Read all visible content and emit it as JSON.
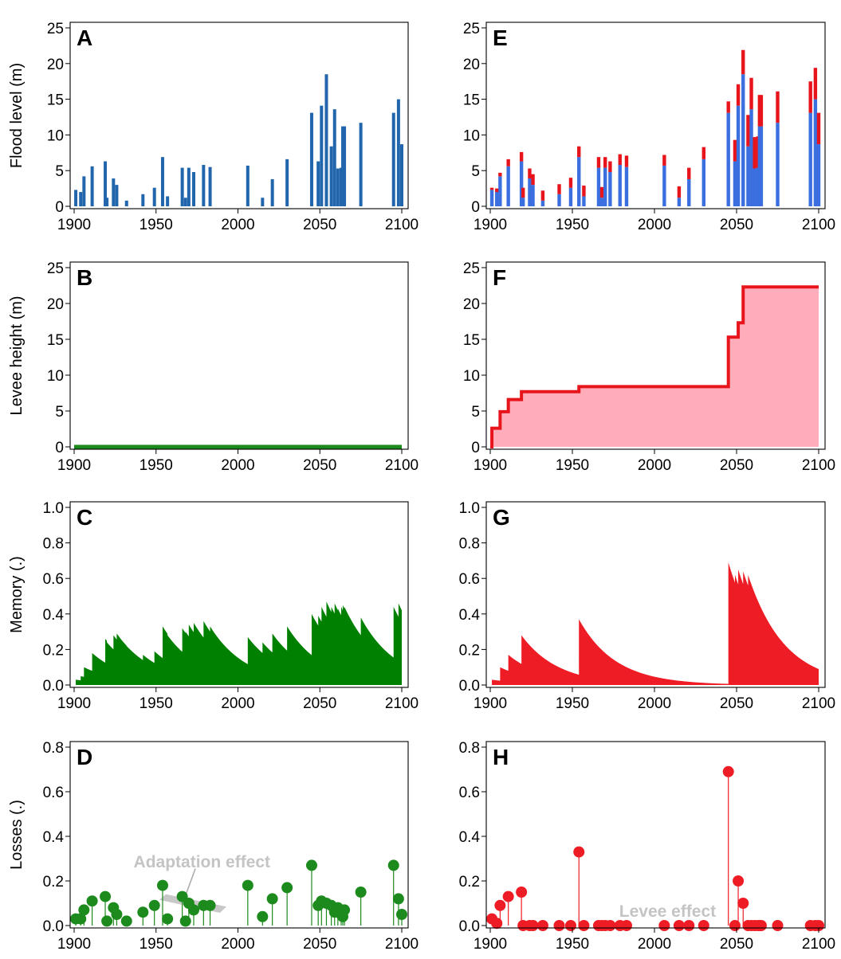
{
  "chart_data": [
    {
      "panel": "A",
      "type": "bar",
      "ylabel": "Flood level (m)",
      "xlim": [
        1900,
        2100
      ],
      "ylim": [
        0,
        25
      ],
      "xticks": [
        1900,
        1950,
        2000,
        2050,
        2100
      ],
      "yticks": [
        0,
        5,
        10,
        15,
        20,
        25
      ],
      "series": [
        {
          "color": "#2166ac",
          "x": [
            1901,
            1904,
            1906,
            1911,
            1919,
            1920,
            1924,
            1926,
            1932,
            1942,
            1949,
            1954,
            1957,
            1966,
            1968,
            1970,
            1973,
            1979,
            1983,
            2006,
            2015,
            2021,
            2030,
            2045,
            2049,
            2051,
            2054,
            2057,
            2059,
            2061,
            2063,
            2064,
            2065,
            2075,
            2095,
            2098,
            2100
          ],
          "values": [
            2.3,
            2.0,
            4.2,
            5.6,
            6.3,
            1.2,
            3.9,
            3.0,
            0.8,
            1.7,
            2.6,
            6.9,
            1.4,
            5.4,
            1.2,
            5.4,
            4.8,
            5.8,
            5.5,
            5.7,
            1.2,
            3.8,
            6.6,
            13.1,
            6.3,
            14.1,
            18.5,
            8.4,
            13.6,
            5.3,
            5.4,
            11.2,
            11.2,
            11.7,
            13.1,
            15.0,
            8.7
          ]
        }
      ]
    },
    {
      "panel": "B",
      "type": "line",
      "ylabel": "Levee height (m)",
      "xlim": [
        1900,
        2100
      ],
      "ylim": [
        0,
        25
      ],
      "xticks": [
        1900,
        1950,
        2000,
        2050,
        2100
      ],
      "yticks": [
        0,
        5,
        10,
        15,
        20,
        25
      ],
      "series": [
        {
          "color": "#1a8a1a",
          "x": [
            1900,
            2100
          ],
          "values": [
            0,
            0
          ]
        }
      ]
    },
    {
      "panel": "C",
      "type": "area",
      "ylabel": "Memory (.)",
      "xlim": [
        1900,
        2100
      ],
      "ylim": [
        0,
        1.0
      ],
      "xticks": [
        1900,
        1950,
        2000,
        2050,
        2100
      ],
      "yticks": [
        0.0,
        0.2,
        0.4,
        0.6,
        0.8,
        1.0
      ],
      "series": [
        {
          "color": "#008000",
          "x": [
            1901,
            1904,
            1906,
            1911,
            1919,
            1920,
            1924,
            1926,
            1932,
            1942,
            1949,
            1954,
            1957,
            1966,
            1968,
            1970,
            1973,
            1979,
            1983,
            2006,
            2015,
            2021,
            2030,
            2045,
            2049,
            2051,
            2054,
            2057,
            2059,
            2061,
            2063,
            2064,
            2065,
            2075,
            2095,
            2098,
            2100
          ],
          "values": [
            0.03,
            0.05,
            0.1,
            0.18,
            0.26,
            0.24,
            0.28,
            0.29,
            0.22,
            0.17,
            0.19,
            0.33,
            0.28,
            0.32,
            0.3,
            0.34,
            0.35,
            0.36,
            0.33,
            0.27,
            0.24,
            0.29,
            0.33,
            0.4,
            0.39,
            0.44,
            0.47,
            0.44,
            0.46,
            0.43,
            0.44,
            0.45,
            0.44,
            0.38,
            0.44,
            0.46,
            0.41
          ],
          "decay": 0.045
        }
      ]
    },
    {
      "panel": "D",
      "type": "scatter",
      "style": "lollipop",
      "ylabel": "Losses (.)",
      "xlim": [
        1900,
        2100
      ],
      "ylim": [
        0,
        0.8
      ],
      "xticks": [
        1900,
        1950,
        2000,
        2050,
        2100
      ],
      "yticks": [
        0.0,
        0.2,
        0.4,
        0.6,
        0.8
      ],
      "annotations": [
        "Adaptation effect"
      ],
      "series": [
        {
          "color": "#1c8a1c",
          "x": [
            1901,
            1904,
            1906,
            1911,
            1919,
            1920,
            1924,
            1926,
            1932,
            1942,
            1949,
            1954,
            1957,
            1966,
            1968,
            1970,
            1973,
            1979,
            1983,
            2006,
            2015,
            2021,
            2030,
            2045,
            2049,
            2051,
            2054,
            2057,
            2059,
            2061,
            2063,
            2064,
            2065,
            2075,
            2095,
            2098,
            2100
          ],
          "values": [
            0.03,
            0.03,
            0.07,
            0.11,
            0.13,
            0.02,
            0.08,
            0.05,
            0.02,
            0.06,
            0.09,
            0.18,
            0.03,
            0.13,
            0.02,
            0.1,
            0.07,
            0.09,
            0.09,
            0.18,
            0.04,
            0.12,
            0.17,
            0.27,
            0.09,
            0.11,
            0.1,
            0.09,
            0.06,
            0.08,
            0.05,
            0.04,
            0.07,
            0.15,
            0.27,
            0.12,
            0.05
          ]
        }
      ]
    },
    {
      "panel": "E",
      "type": "bar",
      "stacked": true,
      "xlim": [
        1900,
        2100
      ],
      "ylim": [
        0,
        25
      ],
      "xticks": [
        1900,
        1950,
        2000,
        2050,
        2100
      ],
      "yticks": [
        0,
        5,
        10,
        15,
        20,
        25
      ],
      "x": [
        1901,
        1904,
        1906,
        1911,
        1919,
        1920,
        1924,
        1926,
        1932,
        1942,
        1949,
        1954,
        1957,
        1966,
        1968,
        1970,
        1973,
        1979,
        1983,
        2006,
        2015,
        2021,
        2030,
        2045,
        2049,
        2051,
        2054,
        2057,
        2059,
        2061,
        2063,
        2064,
        2065,
        2075,
        2095,
        2098,
        2100
      ],
      "series": [
        {
          "color": "#3b6fe0",
          "values": [
            2.3,
            2.0,
            4.2,
            5.6,
            6.3,
            1.2,
            3.9,
            3.0,
            0.8,
            1.7,
            2.6,
            6.9,
            1.4,
            5.4,
            1.2,
            5.4,
            4.8,
            5.8,
            5.5,
            5.7,
            1.2,
            3.8,
            6.6,
            13.1,
            6.3,
            14.1,
            18.5,
            8.4,
            13.6,
            5.3,
            5.4,
            11.2,
            11.2,
            11.7,
            13.1,
            15.0,
            8.7
          ]
        },
        {
          "color": "#e8141b",
          "values": [
            0.3,
            0.5,
            0.5,
            1.0,
            1.3,
            1.4,
            1.4,
            1.5,
            1.4,
            1.4,
            1.4,
            1.5,
            1.5,
            1.5,
            1.5,
            1.5,
            1.5,
            1.5,
            1.6,
            1.5,
            1.6,
            1.6,
            1.7,
            1.6,
            3.0,
            3.0,
            3.4,
            4.4,
            4.4,
            4.4,
            4.4,
            4.4,
            4.4,
            4.4,
            4.4,
            4.4,
            4.4
          ]
        }
      ]
    },
    {
      "panel": "F",
      "type": "area",
      "xlim": [
        1900,
        2100
      ],
      "ylim": [
        0,
        25
      ],
      "xticks": [
        1900,
        1950,
        2000,
        2050,
        2100
      ],
      "yticks": [
        0,
        5,
        10,
        15,
        20,
        25
      ],
      "series": [
        {
          "color": "#e8141b",
          "fill": "#ffadbb",
          "step": true,
          "x": [
            1900,
            1901,
            1906,
            1911,
            1919,
            1954,
            2045,
            2051,
            2054,
            2100
          ],
          "values": [
            0,
            2.6,
            4.9,
            6.6,
            7.7,
            8.4,
            15.3,
            17.3,
            22.3,
            22.3
          ]
        }
      ]
    },
    {
      "panel": "G",
      "type": "area",
      "xlim": [
        1900,
        2100
      ],
      "ylim": [
        0,
        1.0
      ],
      "xticks": [
        1900,
        1950,
        2000,
        2050,
        2100
      ],
      "yticks": [
        0.0,
        0.2,
        0.4,
        0.6,
        0.8,
        1.0
      ],
      "series": [
        {
          "color": "#ee1c25",
          "x": [
            1901,
            1906,
            1911,
            1919,
            1954,
            2045,
            2049,
            2051,
            2054,
            2057
          ],
          "values": [
            0.03,
            0.1,
            0.17,
            0.28,
            0.37,
            0.69,
            0.62,
            0.65,
            0.64,
            0.62
          ],
          "decay": 0.045
        }
      ]
    },
    {
      "panel": "H",
      "type": "scatter",
      "style": "lollipop",
      "xlim": [
        1900,
        2100
      ],
      "ylim": [
        0,
        0.8
      ],
      "xticks": [
        1900,
        1950,
        2000,
        2050,
        2100
      ],
      "yticks": [
        0.0,
        0.2,
        0.4,
        0.6,
        0.8
      ],
      "annotations": [
        "Levee effect"
      ],
      "series": [
        {
          "color": "#ee1c25",
          "x": [
            1901,
            1904,
            1906,
            1911,
            1919,
            1920,
            1924,
            1926,
            1932,
            1942,
            1949,
            1954,
            1957,
            1966,
            1968,
            1970,
            1973,
            1979,
            1983,
            2006,
            2015,
            2021,
            2030,
            2045,
            2049,
            2051,
            2054,
            2057,
            2059,
            2061,
            2063,
            2064,
            2065,
            2075,
            2095,
            2098,
            2100
          ],
          "values": [
            0.03,
            0.01,
            0.09,
            0.13,
            0.15,
            0.0,
            0.0,
            0.0,
            0.0,
            0.0,
            0.0,
            0.33,
            0.0,
            0.0,
            0.0,
            0.0,
            0.0,
            0.0,
            0.0,
            0.0,
            0.0,
            0.0,
            0.0,
            0.69,
            0.0,
            0.2,
            0.1,
            0.0,
            0.0,
            0.0,
            0.0,
            0.0,
            0.0,
            0.0,
            0.0,
            0.0,
            0.0
          ]
        }
      ]
    }
  ]
}
